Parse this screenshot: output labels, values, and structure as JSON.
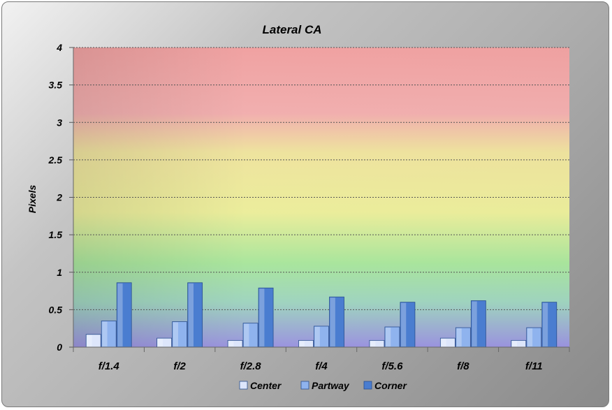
{
  "chart_data": {
    "type": "bar",
    "title": "Lateral CA",
    "xlabel": "",
    "ylabel": "Pixels",
    "ylim": [
      0,
      4
    ],
    "yticks": [
      "0",
      "0.5",
      "1",
      "1.5",
      "2",
      "2.5",
      "3",
      "3.5",
      "4"
    ],
    "grid": true,
    "legend_position": "bottom",
    "categories": [
      "f/1.4",
      "f/2",
      "f/2.8",
      "f/4",
      "f/5.6",
      "f/8",
      "f/11"
    ],
    "series": [
      {
        "name": "Center",
        "color": "#dde6fb",
        "values": [
          0.17,
          0.12,
          0.09,
          0.09,
          0.09,
          0.12,
          0.09
        ]
      },
      {
        "name": "Partway",
        "color": "#8fb3ee",
        "values": [
          0.35,
          0.34,
          0.32,
          0.28,
          0.27,
          0.26,
          0.26
        ]
      },
      {
        "name": "Corner",
        "color": "#4a7dd0",
        "values": [
          0.86,
          0.86,
          0.79,
          0.67,
          0.6,
          0.62,
          0.6
        ]
      }
    ],
    "background_bands": {
      "top": "#f4a0a0",
      "upper": "#f2ee9c",
      "middle": "#a8e6a0",
      "bottom": "#9c96e4"
    }
  }
}
